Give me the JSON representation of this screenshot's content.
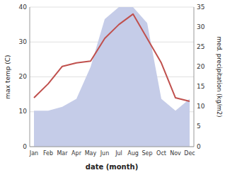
{
  "chart_data": {
    "type": "line",
    "xlabel": "date (month)",
    "ylabel": "max temp (C)",
    "y2label": "med. precipitation (kg/m2)",
    "categories": [
      "Jan",
      "Feb",
      "Mar",
      "Apr",
      "May",
      "Jun",
      "Jul",
      "Aug",
      "Sep",
      "Oct",
      "Nov",
      "Dec"
    ],
    "series": [
      {
        "type": "area",
        "axis": "y2",
        "color": "#c5cce8",
        "values": [
          9,
          9,
          10,
          12,
          20,
          32,
          35,
          35,
          31,
          12,
          9,
          12
        ]
      },
      {
        "type": "line",
        "color": "#c0504d",
        "values": [
          14,
          18,
          23,
          24,
          24.5,
          31,
          35,
          38,
          31,
          24,
          14,
          13
        ]
      }
    ],
    "ylim": [
      0,
      40
    ],
    "yticks": [
      0,
      10,
      20,
      30,
      40
    ],
    "y2lim": [
      0,
      35
    ],
    "y2ticks": [
      0,
      5,
      10,
      15,
      20,
      25,
      30,
      35
    ],
    "grid": true
  }
}
